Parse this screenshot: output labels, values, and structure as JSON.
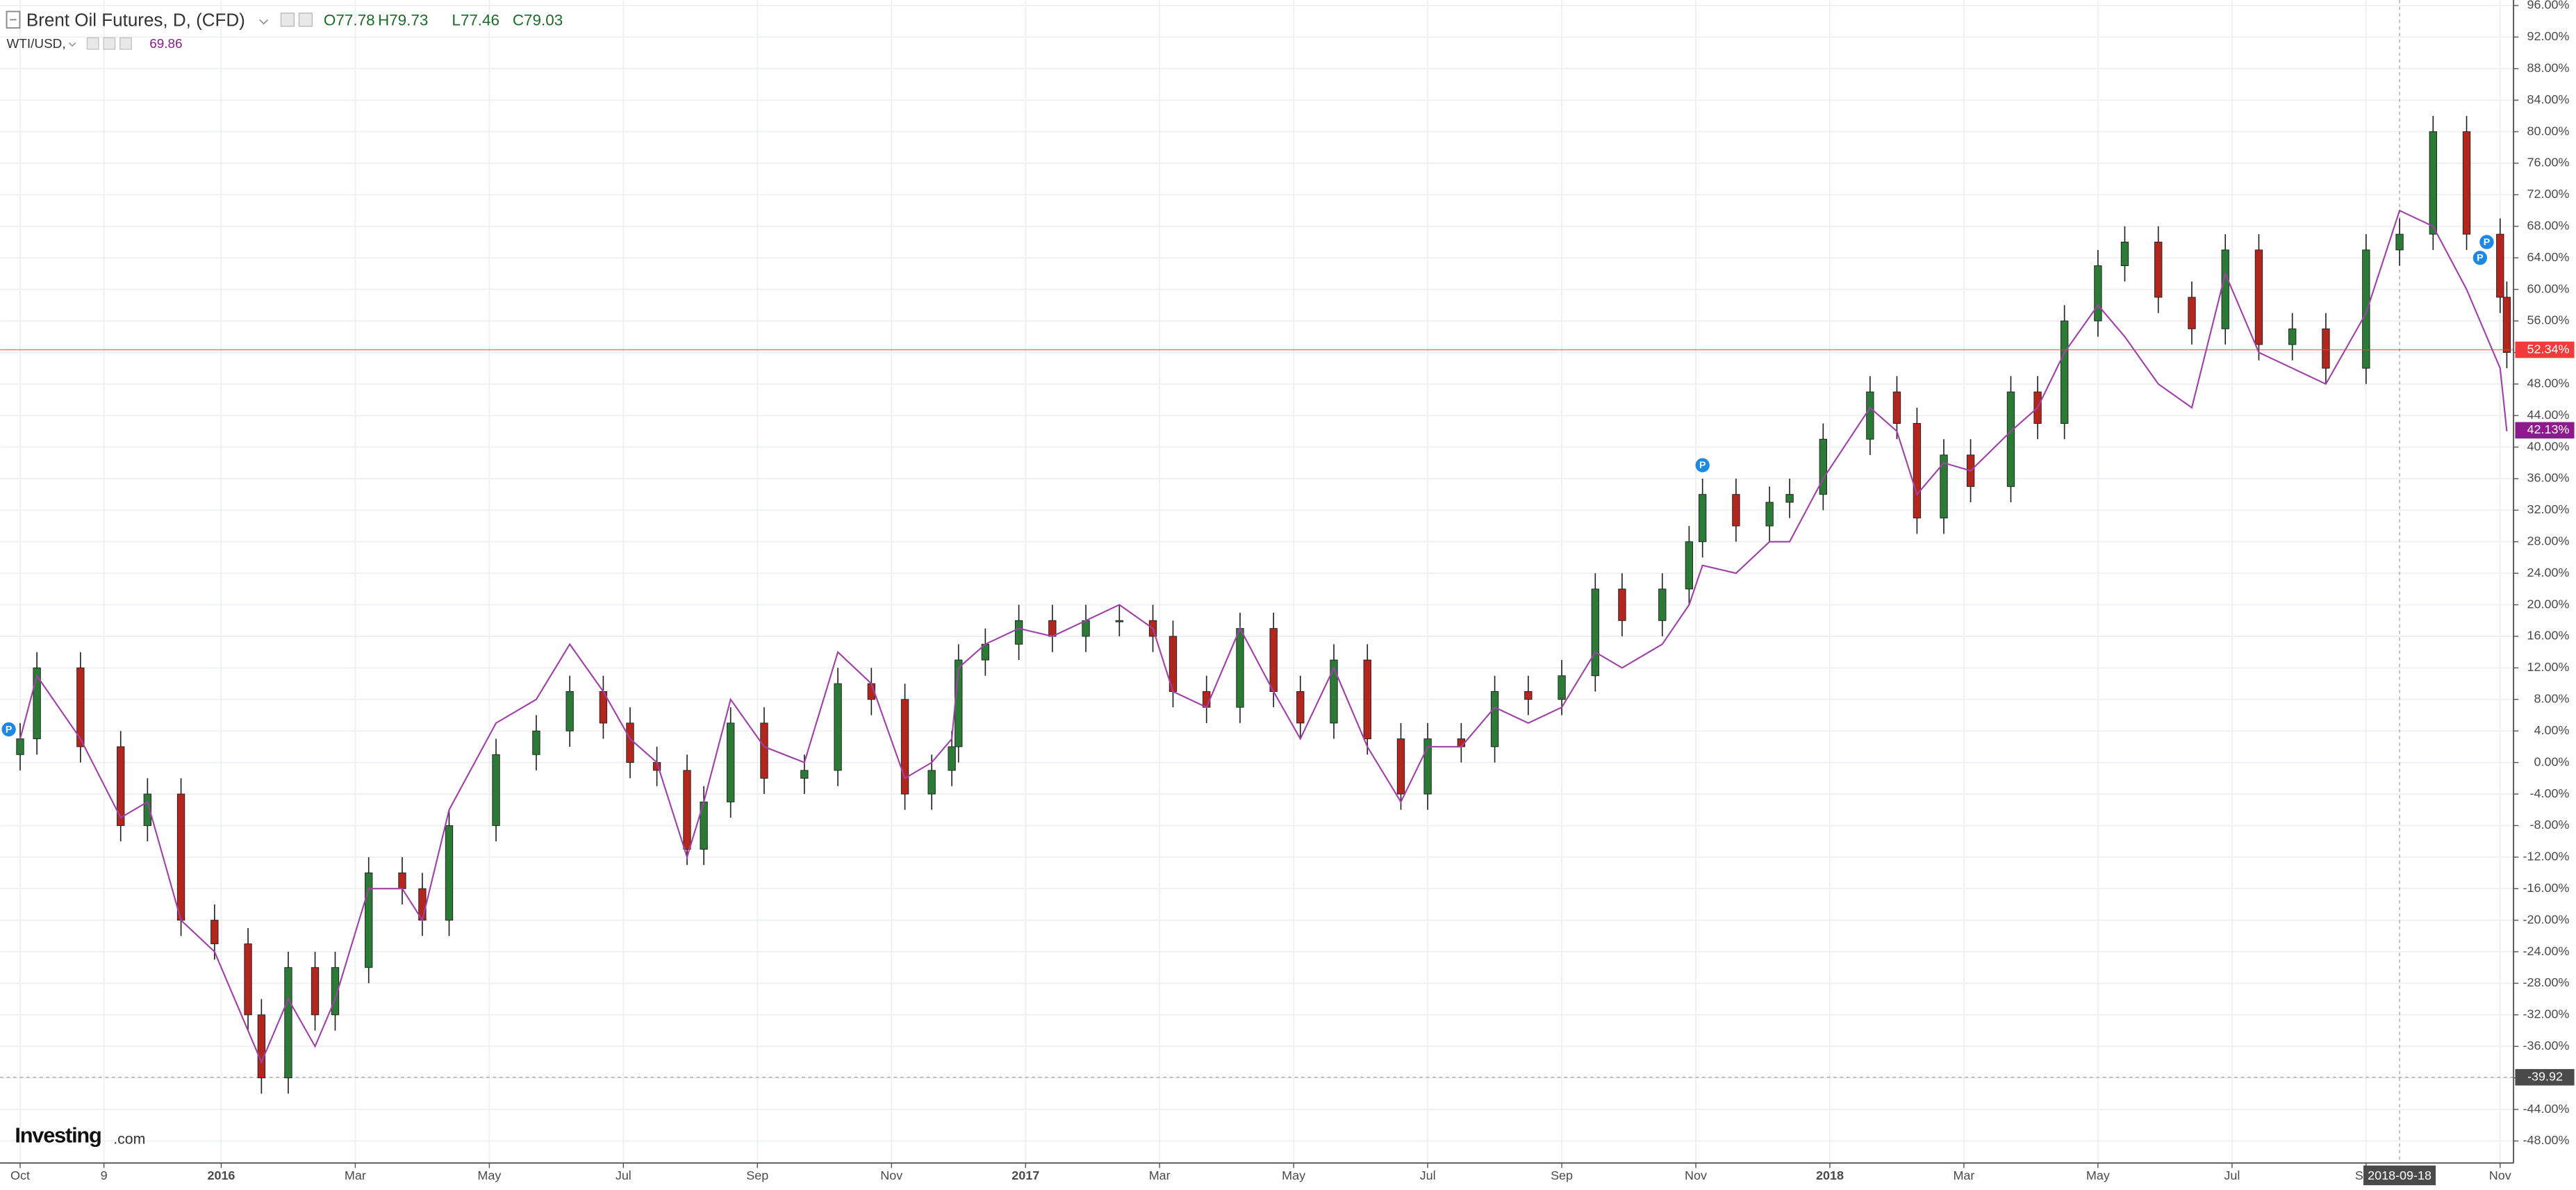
{
  "chart_data": {
    "type": "candlestick",
    "title": "Brent Oil Futures, D, (CFD)",
    "quote": [
      "O77.78",
      "H79.73",
      "L77.46",
      "C79.03"
    ],
    "x": [
      0,
      0.25,
      0.9,
      1.5,
      1.9,
      2.4,
      2.9,
      3.4,
      3.6,
      4,
      4.4,
      4.7,
      5.2,
      5.7,
      6,
      6.4,
      7.1,
      7.7,
      8.2,
      8.7,
      9.1,
      9.5,
      9.95,
      10.2,
      10.6,
      11.1,
      11.7,
      12.2,
      12.7,
      13.2,
      13.6,
      13.9,
      14,
      14.4,
      14.9,
      15.4,
      15.9,
      16.4,
      16.9,
      17.2,
      17.7,
      18.2,
      18.7,
      19.1,
      19.6,
      20.1,
      20.6,
      21,
      21.5,
      22,
      22.5,
      23,
      23.5,
      23.9,
      24.5,
      24.9,
      25.1,
      25.6,
      26.1,
      26.4,
      26.9,
      27.6,
      28,
      28.3,
      28.7,
      29.1,
      29.7,
      30.1,
      30.5,
      31,
      31.4,
      31.9,
      32.4,
      32.9,
      33.4,
      33.9,
      34.4,
      35,
      35.5,
      36,
      36.5,
      37,
      37.1
    ],
    "open": [
      1,
      3,
      12,
      2,
      -8,
      -4,
      -20,
      -23,
      -32,
      -40,
      -26,
      -32,
      -26,
      -14,
      -16,
      -20,
      -8,
      1,
      4,
      9,
      5,
      0,
      -1,
      -11,
      -5,
      5,
      -2,
      -1,
      10,
      8,
      -4,
      -1,
      2,
      13,
      15,
      18,
      16,
      18,
      18,
      16,
      9,
      7,
      17,
      9,
      5,
      13,
      3,
      -4,
      3,
      2,
      9,
      8,
      11,
      22,
      18,
      22,
      28,
      34,
      30,
      33,
      34,
      41,
      47,
      43,
      31,
      39,
      35,
      47,
      43,
      56,
      63,
      66,
      59,
      55,
      65,
      53,
      55,
      50,
      65,
      67,
      80,
      67,
      59
    ],
    "high": [
      5,
      14,
      14,
      4,
      -2,
      -2,
      -18,
      -21,
      -30,
      -24,
      -24,
      -24,
      -12,
      -12,
      -14,
      -6,
      3,
      6,
      11,
      11,
      7,
      2,
      1,
      -3,
      7,
      7,
      1,
      12,
      12,
      10,
      1,
      4,
      15,
      17,
      20,
      20,
      20,
      20,
      20,
      18,
      11,
      19,
      19,
      11,
      15,
      15,
      5,
      5,
      5,
      11,
      11,
      13,
      24,
      24,
      24,
      30,
      36,
      36,
      35,
      36,
      43,
      49,
      49,
      45,
      41,
      41,
      49,
      49,
      58,
      65,
      68,
      68,
      61,
      67,
      67,
      57,
      57,
      67,
      69,
      82,
      82,
      69,
      61
    ],
    "low": [
      -1,
      1,
      0,
      -10,
      -10,
      -22,
      -25,
      -34,
      -42,
      -42,
      -34,
      -34,
      -28,
      -18,
      -22,
      -22,
      -10,
      -1,
      2,
      3,
      -2,
      -3,
      -13,
      -13,
      -7,
      -4,
      -4,
      -3,
      6,
      -6,
      -6,
      -3,
      0,
      11,
      13,
      14,
      14,
      16,
      14,
      7,
      5,
      5,
      7,
      3,
      3,
      1,
      -6,
      -6,
      0,
      0,
      6,
      6,
      9,
      16,
      16,
      20,
      26,
      28,
      28,
      31,
      32,
      39,
      41,
      29,
      29,
      33,
      33,
      41,
      41,
      54,
      61,
      57,
      53,
      53,
      51,
      51,
      48,
      48,
      63,
      65,
      65,
      57,
      50
    ],
    "close": [
      3,
      12,
      2,
      -8,
      -4,
      -20,
      -23,
      -32,
      -40,
      -26,
      -32,
      -26,
      -14,
      -16,
      -20,
      -8,
      1,
      4,
      9,
      5,
      0,
      -1,
      -11,
      -5,
      5,
      -2,
      -1,
      10,
      8,
      -4,
      -1,
      2,
      13,
      15,
      18,
      16,
      18,
      18,
      16,
      9,
      7,
      17,
      9,
      5,
      13,
      3,
      -4,
      3,
      2,
      9,
      8,
      11,
      22,
      18,
      22,
      28,
      34,
      30,
      33,
      34,
      41,
      47,
      43,
      31,
      39,
      35,
      47,
      43,
      56,
      63,
      66,
      59,
      55,
      65,
      53,
      55,
      50,
      65,
      67,
      80,
      67,
      59,
      52
    ],
    "up_color": "#2b7a36",
    "down_color": "#b3261e",
    "overlay": {
      "name": "WTI/USD,",
      "last": 69.86,
      "color": "#a041a8",
      "values": [
        3,
        11,
        3,
        -7,
        -5,
        -20,
        -24,
        -34,
        -38,
        -30,
        -36,
        -30,
        -16,
        -16,
        -20,
        -6,
        5,
        8,
        15,
        9,
        3,
        0,
        -12,
        -5,
        8,
        2,
        0,
        14,
        10,
        -2,
        0,
        3,
        12,
        15,
        17,
        16,
        18,
        20,
        17,
        9,
        7,
        17,
        9,
        3,
        12,
        2,
        -5,
        2,
        2,
        7,
        5,
        7,
        14,
        12,
        15,
        20,
        25,
        24,
        28,
        28,
        36,
        45,
        42,
        34,
        38,
        37,
        42,
        45,
        52,
        58,
        54,
        48,
        45,
        62,
        52,
        50,
        48,
        57,
        70,
        68,
        60,
        50,
        42
      ]
    },
    "price_labels": [
      {
        "value": 52.34,
        "label": "52.34%",
        "color": "#f23b3b"
      },
      {
        "value": 42.13,
        "label": "42.13%",
        "color": "#8e1a8e"
      }
    ],
    "crosshair": {
      "x": 35.5,
      "x_label": "2018-09-18",
      "y": -39.92,
      "y_label": "-39.92"
    },
    "markers": [
      {
        "x": -0.17,
        "y": 4.2,
        "label": "P"
      },
      {
        "x": 25.1,
        "y": 37.7,
        "label": "P"
      },
      {
        "x": 36.7,
        "y": 64,
        "label": "P"
      },
      {
        "x": 36.8,
        "y": 66,
        "label": "P"
      }
    ],
    "logo": [
      "Investing",
      ".com"
    ],
    "grid": true,
    "xlim": [
      -0.3,
      37.2
    ],
    "ylim": [
      -50.8,
      96.7
    ],
    "xticks": [
      {
        "value": 0,
        "label": "Oct"
      },
      {
        "value": 1.25,
        "label": "9"
      },
      {
        "value": 3,
        "label": "2016"
      },
      {
        "value": 5,
        "label": "Mar"
      },
      {
        "value": 7,
        "label": "May"
      },
      {
        "value": 9,
        "label": "Jul"
      },
      {
        "value": 11,
        "label": "Sep"
      },
      {
        "value": 13,
        "label": "Nov"
      },
      {
        "value": 15,
        "label": "2017"
      },
      {
        "value": 17,
        "label": "Mar"
      },
      {
        "value": 19,
        "label": "May"
      },
      {
        "value": 21,
        "label": "Jul"
      },
      {
        "value": 23,
        "label": "Sep"
      },
      {
        "value": 25,
        "label": "Nov"
      },
      {
        "value": 27,
        "label": "2018"
      },
      {
        "value": 29,
        "label": "Mar"
      },
      {
        "value": 31,
        "label": "May"
      },
      {
        "value": 33,
        "label": "Jul"
      },
      {
        "value": 35,
        "label": "Sep"
      },
      {
        "value": 37,
        "label": "Nov"
      }
    ],
    "yticks": [
      {
        "value": -48,
        "label": "-48.00%"
      },
      {
        "value": -44,
        "label": "-44.00%"
      },
      {
        "value": -40,
        "label": "-40.00%"
      },
      {
        "value": -36,
        "label": "-36.00%"
      },
      {
        "value": -32,
        "label": "-32.00%"
      },
      {
        "value": -28,
        "label": "-28.00%"
      },
      {
        "value": -24,
        "label": "-24.00%"
      },
      {
        "value": -20,
        "label": "-20.00%"
      },
      {
        "value": -16,
        "label": "-16.00%"
      },
      {
        "value": -12,
        "label": "-12.00%"
      },
      {
        "value": -8,
        "label": "-8.00%"
      },
      {
        "value": -4,
        "label": "-4.00%"
      },
      {
        "value": 0,
        "label": "0.00%"
      },
      {
        "value": 4,
        "label": "4.00%"
      },
      {
        "value": 8,
        "label": "8.00%"
      },
      {
        "value": 12,
        "label": "12.00%"
      },
      {
        "value": 16,
        "label": "16.00%"
      },
      {
        "value": 20,
        "label": "20.00%"
      },
      {
        "value": 24,
        "label": "24.00%"
      },
      {
        "value": 28,
        "label": "28.00%"
      },
      {
        "value": 32,
        "label": "32.00%"
      },
      {
        "value": 36,
        "label": "36.00%"
      },
      {
        "value": 40,
        "label": "40.00%"
      },
      {
        "value": 44,
        "label": "44.00%"
      },
      {
        "value": 48,
        "label": "48.00%"
      },
      {
        "value": 52,
        "label": "52.00%"
      },
      {
        "value": 56,
        "label": "56.00%"
      },
      {
        "value": 60,
        "label": "60.00%"
      },
      {
        "value": 64,
        "label": "64.00%"
      },
      {
        "value": 68,
        "label": "68.00%"
      },
      {
        "value": 72,
        "label": "72.00%"
      },
      {
        "value": 76,
        "label": "76.00%"
      },
      {
        "value": 80,
        "label": "80.00%"
      },
      {
        "value": 84,
        "label": "84.00%"
      },
      {
        "value": 88,
        "label": "88.00%"
      },
      {
        "value": 92,
        "label": "92.00%"
      },
      {
        "value": 96,
        "label": "96.00%"
      }
    ]
  }
}
